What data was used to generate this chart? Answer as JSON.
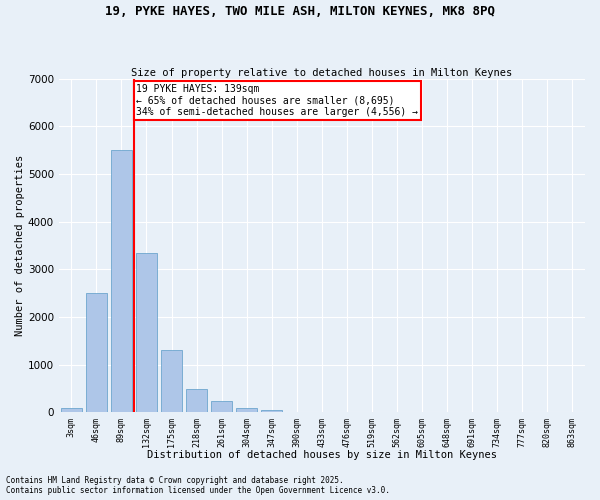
{
  "title_line1": "19, PYKE HAYES, TWO MILE ASH, MILTON KEYNES, MK8 8PQ",
  "title_line2": "Size of property relative to detached houses in Milton Keynes",
  "xlabel": "Distribution of detached houses by size in Milton Keynes",
  "ylabel": "Number of detached properties",
  "bar_labels": [
    "3sqm",
    "46sqm",
    "89sqm",
    "132sqm",
    "175sqm",
    "218sqm",
    "261sqm",
    "304sqm",
    "347sqm",
    "390sqm",
    "433sqm",
    "476sqm",
    "519sqm",
    "562sqm",
    "605sqm",
    "648sqm",
    "691sqm",
    "734sqm",
    "777sqm",
    "820sqm",
    "863sqm"
  ],
  "bar_values": [
    100,
    2500,
    5500,
    3350,
    1300,
    480,
    230,
    100,
    60,
    0,
    0,
    0,
    0,
    0,
    0,
    0,
    0,
    0,
    0,
    0,
    0
  ],
  "bar_color": "#aec6e8",
  "bar_edge_color": "#5a9bc8",
  "vline_x": 2.5,
  "vline_color": "red",
  "annotation_text": "19 PYKE HAYES: 139sqm\n← 65% of detached houses are smaller (8,695)\n34% of semi-detached houses are larger (4,556) →",
  "annotation_box_color": "white",
  "annotation_box_edge_color": "red",
  "ylim": [
    0,
    7000
  ],
  "yticks": [
    0,
    1000,
    2000,
    3000,
    4000,
    5000,
    6000,
    7000
  ],
  "bg_color": "#e8f0f8",
  "plot_bg_color": "#e8f0f8",
  "grid_color": "white",
  "footer_line1": "Contains HM Land Registry data © Crown copyright and database right 2025.",
  "footer_line2": "Contains public sector information licensed under the Open Government Licence v3.0.",
  "figsize": [
    6.0,
    5.0
  ],
  "dpi": 100
}
